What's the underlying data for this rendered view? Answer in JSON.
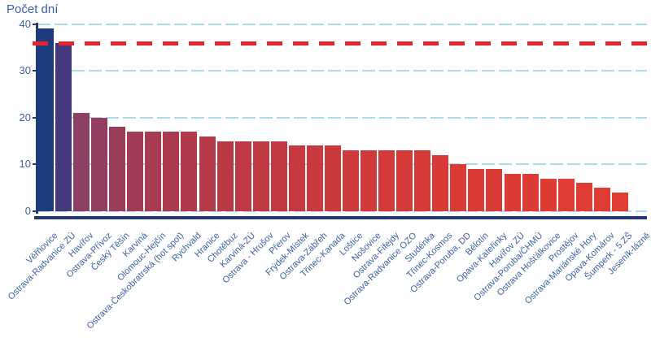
{
  "title": "Počet dní",
  "chart_data": {
    "type": "bar",
    "title": "Počet dní",
    "ylabel": "Počet dní",
    "xlabel": "",
    "ylim": [
      0,
      40
    ],
    "yticks": [
      0,
      10,
      20,
      30,
      40
    ],
    "grid": true,
    "legend_position": "none",
    "categories": [
      "Věřňovice",
      "Ostrava-Radvanice ZÚ",
      "Havířov",
      "Ostrava-Přívoz",
      "Český Těšín",
      "Karviná",
      "Olomouc-Hejčín",
      "Ostrava-Českobratrská (hot spot)",
      "Rychvald",
      "Hranice",
      "Chotěbuz",
      "Karviná-ZÚ",
      "Ostrava - Hrušov",
      "Přerov",
      "Frýdek-Místek",
      "Ostrava-Zábřeh",
      "Třinec-Kanada",
      "Loštice",
      "Nošovice",
      "Ostrava-Fifejdy",
      "Ostrava-Radvanice OZO",
      "Studénka",
      "Třinec-Kosmos",
      "Ostrava-Poruba, DD",
      "Bělotín",
      "Opava-Kateřinky",
      "Havířov ZÚ",
      "Ostrava-Poruba/ČHMÚ",
      "Ostrava Hošťálkovice",
      "Prostějov",
      "Ostrava-Mariánské Hory",
      "Opava-Komárov",
      "Šumperk - 5.ZŠ",
      "Jeseník-lázně"
    ],
    "values": [
      39,
      36,
      21,
      20,
      18,
      17,
      17,
      17,
      17,
      16,
      15,
      15,
      15,
      15,
      14,
      14,
      14,
      13,
      13,
      13,
      13,
      13,
      12,
      10,
      9,
      9,
      8,
      8,
      7,
      7,
      6,
      5,
      4,
      0
    ],
    "bar_colors": [
      "#1c3d7d",
      "#45397e",
      "#8d4066",
      "#933e60",
      "#9a3d5b",
      "#a03c56",
      "#a63b52",
      "#ab3a4f",
      "#b03a4c",
      "#b53949",
      "#b93947",
      "#bd3945",
      "#c03943",
      "#c43941",
      "#c73940",
      "#ca393e",
      "#cc393d",
      "#cf3a3c",
      "#d13a3b",
      "#d33a3a",
      "#d53a39",
      "#d63a38",
      "#d83a38",
      "#d93b37",
      "#da3b36",
      "#db3b36",
      "#dc3b35",
      "#dd3b35",
      "#dd3b34",
      "#de3c34",
      "#de3c34",
      "#df3c33",
      "#df3c33",
      "#e03c33"
    ],
    "limit_line": {
      "value": 36,
      "color": "#e8232b",
      "style": "dashed"
    }
  },
  "colors": {
    "background": "#ffffff",
    "axis": "#1e3a6e",
    "tick_text": "#3b5fa8",
    "gridline": "#abdbe7",
    "limit_line": "#e8232b"
  }
}
